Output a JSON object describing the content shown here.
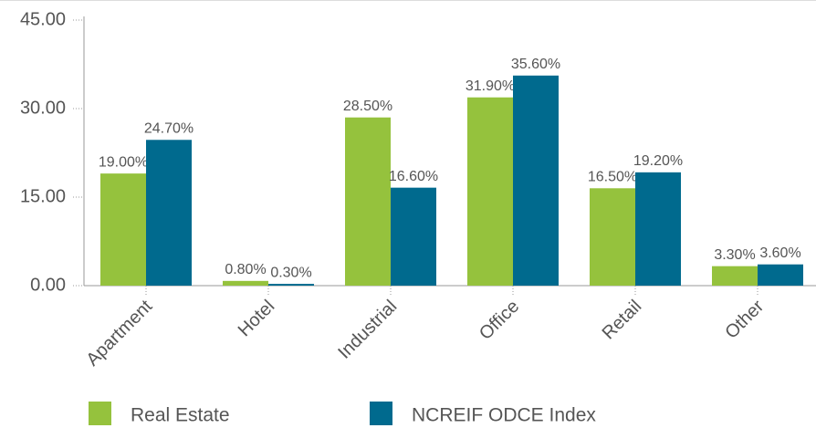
{
  "chart_data": {
    "type": "bar",
    "categories": [
      "Apartment",
      "Hotel",
      "Industrial",
      "Office",
      "Retail",
      "Other"
    ],
    "series": [
      {
        "name": "Real Estate",
        "color": "#95c23d",
        "values": [
          19.0,
          0.8,
          28.5,
          31.9,
          16.5,
          3.3
        ],
        "value_labels": [
          "19.00%",
          "0.80%",
          "28.50%",
          "31.90%",
          "16.50%",
          "3.30%"
        ]
      },
      {
        "name": "NCREIF ODCE Index",
        "color": "#006a8e",
        "values": [
          24.7,
          0.3,
          16.6,
          35.6,
          19.2,
          3.6
        ],
        "value_labels": [
          "24.70%",
          "0.30%",
          "16.60%",
          "35.60%",
          "19.20%",
          "3.60%"
        ]
      }
    ],
    "ylim": [
      0,
      45
    ],
    "yticks": [
      {
        "value": 0,
        "label": "0.00"
      },
      {
        "value": 15,
        "label": "15.00"
      },
      {
        "value": 30,
        "label": "30.00"
      },
      {
        "value": 45,
        "label": "45.00"
      }
    ]
  }
}
